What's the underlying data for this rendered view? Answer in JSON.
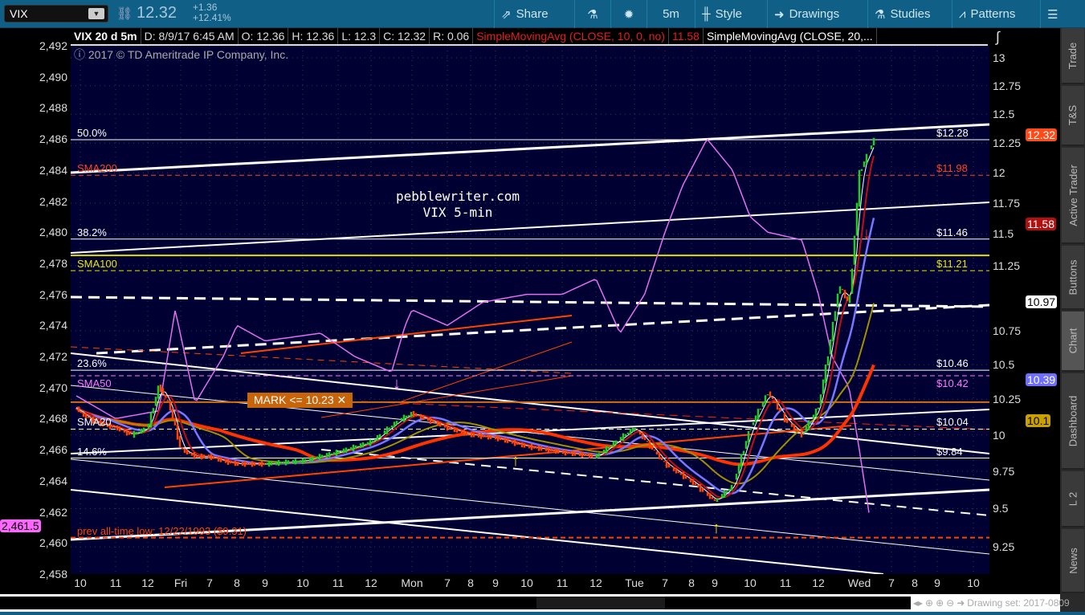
{
  "toolbar": {
    "symbol": "VIX",
    "last": "12.32",
    "change": "+1.36",
    "change_pct": "+12.41%",
    "share": "Share",
    "interval": "5m",
    "style": "Style",
    "drawings": "Drawings",
    "studies": "Studies",
    "patterns": "Patterns"
  },
  "header": {
    "title": "VIX 20 d 5m",
    "date": "D: 8/9/17 6:45 AM",
    "open": "O: 12.36",
    "high": "H: 12.36",
    "low": "L: 12.3",
    "close": "C: 12.32",
    "range": "R: 0.06",
    "sma10": "SimpleMovingAvg (CLOSE, 10, 0, no)",
    "sma10_value": "11.58",
    "sma20": "SimpleMovingAvg (CLOSE, 20,..."
  },
  "copyright": "2017 © TD Ameritrade IP Company, Inc.",
  "watermark": [
    "pebblewriter.com",
    "VIX 5-min"
  ],
  "mark_label": "MARK <= 10.23 ✕",
  "sidebar": [
    "Trade",
    "T&S",
    "Active Trader",
    "Buttons",
    "Chart",
    "Dashboard",
    "L 2",
    "News"
  ],
  "sidebar_selected": "Chart",
  "drawing_set": "Drawing set: 2017-0809",
  "colors": {
    "up": "#22cc22",
    "down": "#ff4400",
    "spx": "#e070f0",
    "sma200": "#ff3300",
    "sma100": "#e0e000",
    "sma50": "#ff77ff",
    "sma20": "#7777ff",
    "bg": "#000033",
    "toolbar": "#0f5f86"
  },
  "chart_data": {
    "type": "candlestick",
    "scale_right": "log",
    "right_ticks": [
      "13",
      "12.75",
      "12.5",
      "12.25",
      "12",
      "11.75",
      "11.5",
      "11.25",
      "10.75",
      "10.5",
      "10.25",
      "10",
      "9.75",
      "9.5",
      "9.25"
    ],
    "left_ticks": [
      "2,492",
      "2,490",
      "2,488",
      "2,486",
      "2,484",
      "2,482",
      "2,480",
      "2,478",
      "2,476",
      "2,474",
      "2,472",
      "2,470",
      "2,468",
      "2,466",
      "2,464",
      "2,462",
      "2,460",
      "2,458"
    ],
    "x_ticks": [
      "10",
      "11",
      "12",
      "Fri",
      "7",
      "8",
      "9",
      "10",
      "11",
      "12",
      "Mon",
      "7",
      "8",
      "9",
      "10",
      "11",
      "12",
      "Tue",
      "7",
      "8",
      "9",
      "10",
      "11",
      "12",
      "Wed",
      "7",
      "8",
      "9",
      "10"
    ],
    "levels": [
      {
        "left": "50.0%",
        "right": "$12.28",
        "price": 12.28,
        "color": "#ffffff",
        "style": "solid"
      },
      {
        "left": "SMA200",
        "right": "$11.98",
        "price": 11.98,
        "color": "#ff4422",
        "style": "dashed"
      },
      {
        "left": "38.2%",
        "right": "$11.46",
        "price": 11.46,
        "color": "#ffffff",
        "style": "solid"
      },
      {
        "left": "SMA100",
        "right": "$11.21",
        "price": 11.21,
        "color": "#e8e800",
        "style": "dashed"
      },
      {
        "left": "23.6%",
        "right": "$10.46",
        "price": 10.46,
        "color": "#ffffff",
        "style": "solid"
      },
      {
        "left": "SMA50",
        "right": "$10.42",
        "price": 10.42,
        "color": "#ff77ff",
        "style": "dashed"
      },
      {
        "left": "SMA20",
        "right": "$10.04",
        "price": 10.04,
        "color": "#ffffff",
        "style": "dashed"
      },
      {
        "left": "14.6%",
        "right": "$9.84",
        "price": 9.84,
        "color": "#ffffff",
        "style": "solid"
      },
      {
        "left": "prev all-time low: 12/22/1993 ($9.31)",
        "right": "",
        "price": 9.31,
        "color": "#ff4400",
        "style": "dashed"
      }
    ],
    "mark_price": 10.23,
    "price_tags": [
      {
        "label": "12.32",
        "price": 12.32,
        "bg": "#ff4a1a",
        "fg": "#ffffff"
      },
      {
        "label": "11.58",
        "price": 11.58,
        "bg": "#b01010",
        "fg": "#ffffff"
      },
      {
        "label": "10.97",
        "price": 10.97,
        "bg": "#ffffff",
        "fg": "#000000"
      },
      {
        "label": "10.39",
        "price": 10.39,
        "bg": "#6f6fff",
        "fg": "#ffffff"
      },
      {
        "label": "10.1",
        "price": 10.1,
        "bg": "#c8a000",
        "fg": "#000000"
      }
    ],
    "spx_tag": {
      "label": "2,461.5",
      "value": 2461.5
    },
    "vix": [
      [
        "Thu 09:50",
        10.2
      ],
      [
        "Thu 10:00",
        10.15
      ],
      [
        "Thu 10:30",
        10.08
      ],
      [
        "Thu 11:00",
        10.05
      ],
      [
        "Thu 11:30",
        10.0
      ],
      [
        "Thu 12:00",
        10.05
      ],
      [
        "Thu 12:20",
        10.35
      ],
      [
        "Thu 12:40",
        10.2
      ],
      [
        "Fri 06:00",
        9.9
      ],
      [
        "Fri 06:30",
        9.85
      ],
      [
        "Fri 07:00",
        9.85
      ],
      [
        "Fri 07:30",
        9.82
      ],
      [
        "Fri 08:00",
        9.8
      ],
      [
        "Fri 09:00",
        9.8
      ],
      [
        "Fri 10:00",
        9.82
      ],
      [
        "Fri 11:00",
        9.88
      ],
      [
        "Fri 12:00",
        9.95
      ],
      [
        "Fri 12:40",
        10.1
      ],
      [
        "Mon 06:00",
        10.15
      ],
      [
        "Mon 07:00",
        10.05
      ],
      [
        "Mon 08:00",
        10.0
      ],
      [
        "Mon 09:00",
        9.98
      ],
      [
        "Mon 10:00",
        9.92
      ],
      [
        "Mon 11:00",
        9.88
      ],
      [
        "Mon 12:00",
        9.85
      ],
      [
        "Tue 06:00",
        10.05
      ],
      [
        "Tue 07:00",
        9.8
      ],
      [
        "Tue 08:00",
        9.68
      ],
      [
        "Tue 09:00",
        9.55
      ],
      [
        "Tue 09:30",
        9.65
      ],
      [
        "Tue 10:00",
        10.05
      ],
      [
        "Tue 10:30",
        10.3
      ],
      [
        "Tue 11:00",
        10.1
      ],
      [
        "Tue 11:30",
        10.0
      ],
      [
        "Tue 12:00",
        10.2
      ],
      [
        "Tue 12:15",
        10.6
      ],
      [
        "Tue 12:30",
        11.1
      ],
      [
        "Tue 12:45",
        10.95
      ],
      [
        "Wed 06:00",
        12.0
      ],
      [
        "Wed 06:30",
        12.32
      ]
    ],
    "spx": [
      [
        "Thu 09:50",
        2469.5
      ],
      [
        "Thu 11:00",
        2468
      ],
      [
        "Thu 12:20",
        2468.5
      ],
      [
        "Thu 12:50",
        2475
      ],
      [
        "Fri 06:30",
        2469
      ],
      [
        "Fri 07:30",
        2472
      ],
      [
        "Fri 08:00",
        2474
      ],
      [
        "Fri 09:00",
        2473
      ],
      [
        "Fri 10:30",
        2473.5
      ],
      [
        "Fri 11:30",
        2472
      ],
      [
        "Fri 12:30",
        2471
      ],
      [
        "Fri 12:50",
        2474
      ],
      [
        "Mon 06:00",
        2475
      ],
      [
        "Mon 07:00",
        2474
      ],
      [
        "Mon 08:30",
        2475.5
      ],
      [
        "Mon 10:00",
        2476
      ],
      [
        "Mon 11:00",
        2476
      ],
      [
        "Mon 12:00",
        2477
      ],
      [
        "Tue 05:30",
        2473.5
      ],
      [
        "Tue 06:20",
        2476
      ],
      [
        "Tue 07:00",
        2480
      ],
      [
        "Tue 07:40",
        2483
      ],
      [
        "Tue 08:40",
        2486
      ],
      [
        "Tue 09:30",
        2484
      ],
      [
        "Tue 10:00",
        2481
      ],
      [
        "Tue 10:30",
        2480
      ],
      [
        "Tue 11:30",
        2479.5
      ],
      [
        "Tue 12:00",
        2476
      ],
      [
        "Tue 12:20",
        2472
      ],
      [
        "Tue 12:45",
        2470
      ],
      [
        "Wed 06:00",
        2466
      ],
      [
        "Wed 06:20",
        2461.5
      ]
    ]
  }
}
